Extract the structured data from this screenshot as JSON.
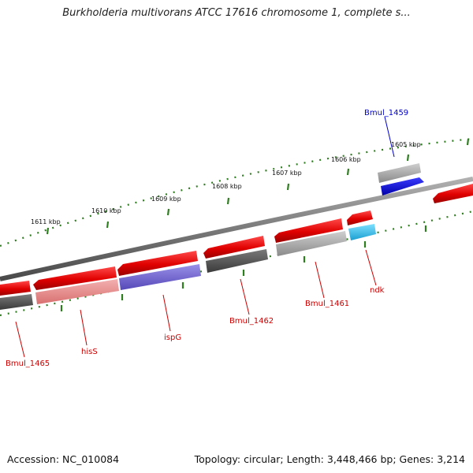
{
  "title": "Burkholderia multivorans ATCC 17616 chromosome 1, complete s...",
  "footer": {
    "accession": "Accession: NC_010084",
    "summary": "Topology: circular; Length: 3,448,466 bp; Genes: 3,214"
  },
  "scale_ticks": [
    "1611 kbp",
    "1610 kbp",
    "1609 kbp",
    "1608 kbp",
    "1607 kbp",
    "1606 kbp",
    "1605 kbp"
  ],
  "gene_labels": [
    {
      "id": "bmul-1459",
      "text": "Bmul_1459",
      "color": "#0000cc"
    },
    {
      "id": "bmul-1461",
      "text": "Bmul_1461",
      "color": "#cc0000"
    },
    {
      "id": "ndk",
      "text": "ndk",
      "color": "#cc0000"
    },
    {
      "id": "bmul-1462",
      "text": "Bmul_1462",
      "color": "#cc0000"
    },
    {
      "id": "ispg",
      "text": "ispG",
      "color": "#cc0000"
    },
    {
      "id": "hiss",
      "text": "hisS",
      "color": "#cc0000"
    },
    {
      "id": "bmul-1465",
      "text": "Bmul_1465",
      "color": "#cc0000"
    }
  ],
  "colors": {
    "backbone": "#8a8a8a",
    "gene_red": "#e00000",
    "gene_blue": "#0000ee",
    "gene_cyan": "#22b8e8",
    "gene_purple": "#6f63cc",
    "gene_pink": "#e88a8a",
    "gene_dark_gray": "#5a5a5a",
    "gene_light_gray": "#a8a8a8",
    "tick_green": "#2e7d1f"
  }
}
